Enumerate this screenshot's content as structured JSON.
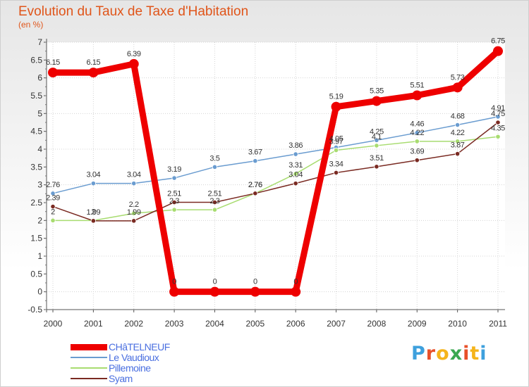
{
  "title": "Evolution du Taux de Taxe d'Habitation",
  "unit_label": "(en %)",
  "brand": {
    "letters": [
      "P",
      "r",
      "o",
      "x",
      "i",
      "t",
      "i"
    ],
    "colors": [
      "#3ea0dd",
      "#e8502a",
      "#f5b41b",
      "#3aa850",
      "#e8502a",
      "#f5b41b",
      "#3ea0dd"
    ]
  },
  "chart_data": {
    "type": "line",
    "x": [
      "2000",
      "2001",
      "2002",
      "2003",
      "2004",
      "2005",
      "2006",
      "2007",
      "2008",
      "2009",
      "2010",
      "2011"
    ],
    "ylim": [
      -0.5,
      7
    ],
    "y_ticks": [
      "-0.5",
      "0",
      "0.5",
      "1",
      "1.5",
      "2",
      "2.5",
      "3",
      "3.5",
      "4",
      "4.5",
      "5",
      "5.5",
      "6",
      "6.5",
      "7"
    ],
    "grid": true,
    "legend_position": "bottom-left",
    "series": [
      {
        "name": "CHâTELNEUF",
        "color": "#ee0000",
        "values": [
          6.15,
          6.15,
          6.39,
          0,
          0,
          0,
          0,
          5.19,
          5.35,
          5.51,
          5.73,
          6.75
        ],
        "labels": [
          "6.15",
          "6.15",
          "6.39",
          "0",
          "0",
          "0",
          "0",
          "5.19",
          "5.35",
          "5.51",
          "5.73",
          "6.75"
        ]
      },
      {
        "name": "Le Vaudioux",
        "color": "#6a9cd0",
        "values": [
          2.76,
          3.04,
          3.04,
          3.19,
          3.5,
          3.67,
          3.86,
          4.05,
          4.25,
          4.46,
          4.68,
          4.91
        ],
        "labels": [
          "2.76",
          "3.04",
          "3.04",
          "3.19",
          "3.5",
          "3.67",
          "3.86",
          "4.05",
          "4.25",
          "4.46",
          "4.68",
          "4.91"
        ]
      },
      {
        "name": "Pillemoine",
        "color": "#a8dc70",
        "values": [
          2,
          2,
          2.2,
          2.3,
          2.3,
          2.76,
          3.31,
          3.97,
          4.1,
          4.22,
          4.22,
          4.35
        ],
        "labels": [
          "2",
          "2",
          "2.2",
          "2.3",
          "2.3",
          "2.76",
          "3.31",
          "3.97",
          "4.1",
          "4.22",
          "4.22",
          "4.35"
        ]
      },
      {
        "name": "Syam",
        "color": "#7a2a22",
        "values": [
          2.39,
          1.99,
          1.99,
          2.51,
          2.51,
          2.76,
          3.04,
          3.34,
          3.51,
          3.69,
          3.87,
          4.75
        ],
        "labels": [
          "2.39",
          "1.99",
          "1.99",
          "2.51",
          "2.51",
          "2.76",
          "3.04",
          "3.34",
          "3.51",
          "3.69",
          "3.87",
          "4.75"
        ]
      }
    ]
  }
}
